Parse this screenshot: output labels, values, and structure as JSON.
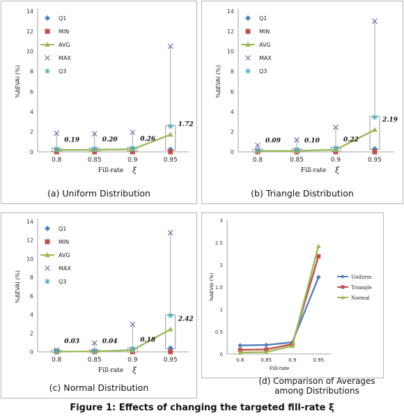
{
  "figure_caption": "Figure 1: Effects of changing the targeted fill-rate ξ",
  "panels": {
    "a": {
      "caption": "(a) Uniform Distribution"
    },
    "b": {
      "caption": "(b) Triangle Distribution"
    },
    "c": {
      "caption": "(c) Normal Distribution"
    },
    "d": {
      "caption": "(d) Comparison of Averages among Distributions"
    }
  },
  "colors": {
    "q1": "#4f81bd",
    "min": "#c0504d",
    "avg": "#9bbb59",
    "max": "#8064a2",
    "q3": "#4bacc6",
    "box": "#7f7f7f"
  },
  "chart_data": [
    {
      "type": "box",
      "id": "a",
      "ylabel": "%ΔEVAI (%)",
      "xlabel": "Fill-rate",
      "xsymbol": "ξ",
      "categories": [
        "0.8",
        "0.85",
        "0.9",
        "0.95"
      ],
      "ylim": [
        0,
        14
      ],
      "yticks": [
        0,
        2,
        4,
        6,
        8,
        10,
        12,
        14
      ],
      "legend": [
        "Q1",
        "MIN",
        "AVG",
        "MAX",
        "Q3"
      ],
      "series": {
        "Q1": [
          0.1,
          0.1,
          0.12,
          0.25
        ],
        "MIN": [
          0,
          0,
          0,
          0
        ],
        "AVG": [
          0.19,
          0.2,
          0.26,
          1.72
        ],
        "MAX": [
          1.85,
          1.8,
          1.95,
          10.5
        ],
        "Q3": [
          0.3,
          0.32,
          0.38,
          2.55
        ]
      },
      "avg_labels": [
        "0.19",
        "0.20",
        "0.26",
        "1.72"
      ]
    },
    {
      "type": "box",
      "id": "b",
      "ylabel": "%ΔEVAI (%)",
      "xlabel": "Fill-rate",
      "xsymbol": "ξ",
      "categories": [
        "0.8",
        "0.85",
        "0.9",
        "0.95"
      ],
      "ylim": [
        0,
        14
      ],
      "yticks": [
        0,
        2,
        4,
        6,
        8,
        10,
        12,
        14
      ],
      "legend": [
        "Q1",
        "MIN",
        "AVG",
        "MAX",
        "Q3"
      ],
      "series": {
        "Q1": [
          0.05,
          0.05,
          0.1,
          0.3
        ],
        "MIN": [
          0,
          0,
          0,
          0
        ],
        "AVG": [
          0.09,
          0.1,
          0.22,
          2.19
        ],
        "MAX": [
          0.65,
          1.2,
          2.45,
          13.0
        ],
        "Q3": [
          0.2,
          0.25,
          0.4,
          3.45
        ]
      },
      "avg_labels": [
        "0.09",
        "0.10",
        "0.22",
        "2.19"
      ]
    },
    {
      "type": "box",
      "id": "c",
      "ylabel": "%ΔEVAI (%)",
      "xlabel": "Fill-rate",
      "xsymbol": "ξ",
      "categories": [
        "0.8",
        "0.85",
        "0.9",
        "0.95"
      ],
      "ylim": [
        0,
        14
      ],
      "yticks": [
        0,
        2,
        4,
        6,
        8,
        10,
        12,
        14
      ],
      "legend": [
        "Q1",
        "MIN",
        "AVG",
        "MAX",
        "Q3"
      ],
      "series": {
        "Q1": [
          0.02,
          0.02,
          0.05,
          0.4
        ],
        "MIN": [
          0,
          0,
          0,
          0
        ],
        "AVG": [
          0.03,
          0.04,
          0.18,
          2.42
        ],
        "MAX": [
          0.2,
          0.95,
          2.95,
          12.8
        ],
        "Q3": [
          0.1,
          0.15,
          0.35,
          3.9
        ]
      },
      "avg_labels": [
        "0.03",
        "0.04",
        "0.18",
        "2.42"
      ]
    },
    {
      "type": "line",
      "id": "d",
      "ylabel": "%ΔEVAI (%)",
      "xlabel": "Fill-rate",
      "categories": [
        "0.8",
        "0.85",
        "0.9",
        "0.95"
      ],
      "ylim": [
        0,
        3
      ],
      "yticks": [
        "0",
        "0.5",
        "1",
        "1.5",
        "2",
        "2.5",
        "3"
      ],
      "series": [
        {
          "name": "Uniform",
          "values": [
            0.19,
            0.2,
            0.26,
            1.72
          ]
        },
        {
          "name": "Triangle",
          "values": [
            0.09,
            0.1,
            0.22,
            2.19
          ]
        },
        {
          "name": "Normal",
          "values": [
            0.03,
            0.04,
            0.18,
            2.42
          ]
        }
      ]
    }
  ]
}
